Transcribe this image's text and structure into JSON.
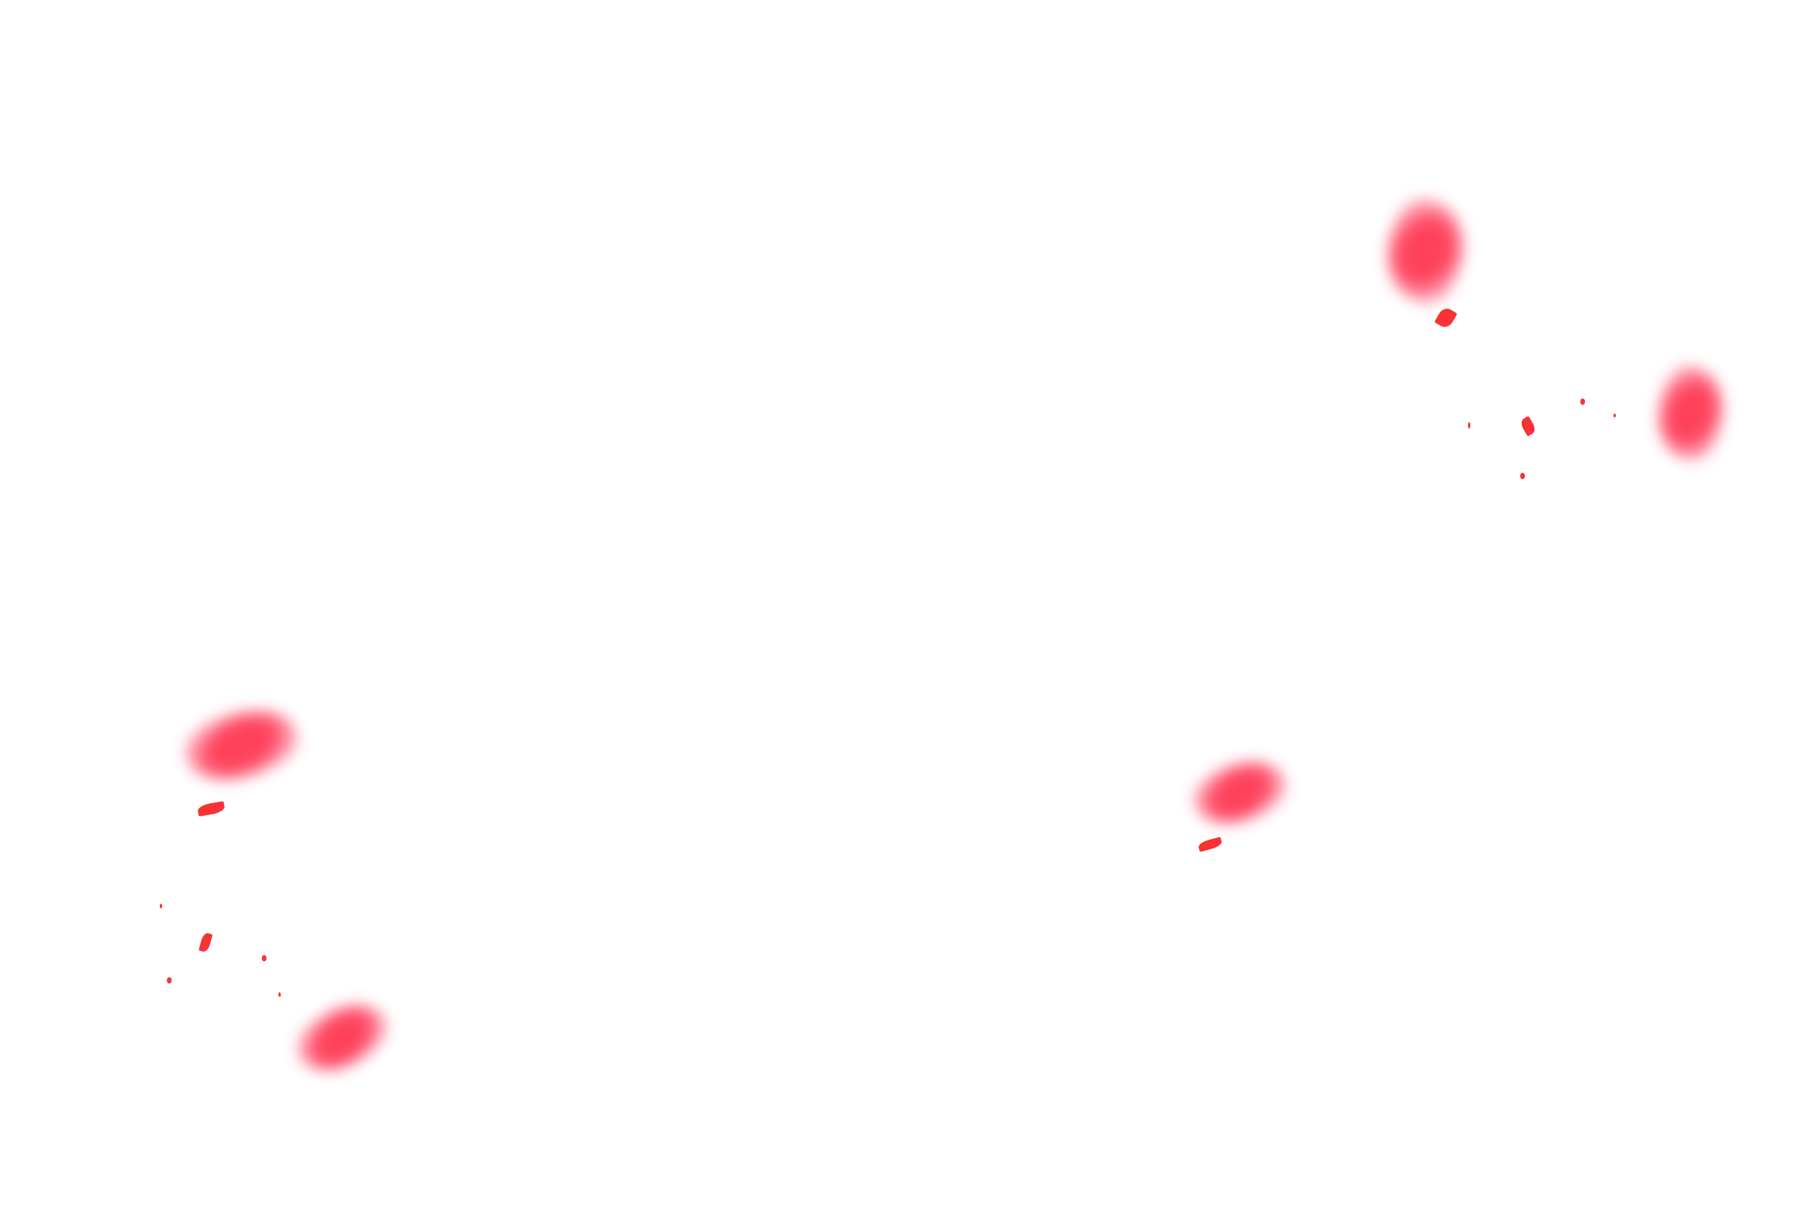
{
  "scene": {
    "background": "#ffffff",
    "petal_color": "#ff2d4a",
    "fleck_color": "#f0381e"
  }
}
